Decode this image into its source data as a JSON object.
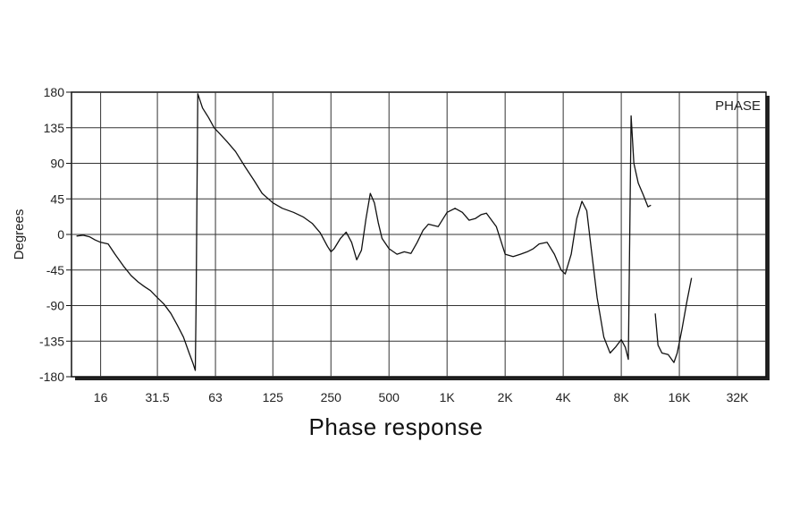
{
  "chart_data": {
    "type": "line",
    "title": "Phase response",
    "xlabel": "",
    "ylabel": "Degrees",
    "legend": "PHASE",
    "legend_position": "top-right",
    "grid": true,
    "x_scale": "log2",
    "xlim": [
      11.3,
      45000
    ],
    "ylim": [
      -180,
      180
    ],
    "x_ticks": [
      16,
      31.5,
      63,
      125,
      250,
      500,
      1000,
      2000,
      4000,
      8000,
      16000,
      32000
    ],
    "x_tick_labels": [
      "16",
      "31.5",
      "63",
      "125",
      "250",
      "500",
      "1K",
      "2K",
      "4K",
      "8K",
      "16K",
      "32K"
    ],
    "y_ticks": [
      180,
      135,
      90,
      45,
      0,
      -45,
      -90,
      -135,
      -180
    ],
    "y_tick_labels": [
      "180",
      "135",
      "90",
      "45",
      "0",
      "-45",
      "-90",
      "-135",
      "-180"
    ],
    "series": [
      {
        "segments": [
          [
            [
              12.0,
              -2
            ],
            [
              13.0,
              -1
            ],
            [
              14.0,
              -3
            ],
            [
              15.0,
              -7
            ],
            [
              16.0,
              -10
            ],
            [
              17.5,
              -12
            ],
            [
              19.0,
              -25
            ],
            [
              21.0,
              -40
            ],
            [
              23.0,
              -52
            ],
            [
              25.0,
              -60
            ],
            [
              27.0,
              -66
            ],
            [
              29.0,
              -71
            ],
            [
              31.5,
              -80
            ],
            [
              34.0,
              -88
            ],
            [
              37.0,
              -100
            ],
            [
              40.0,
              -115
            ],
            [
              43.0,
              -130
            ],
            [
              46.0,
              -150
            ],
            [
              48.0,
              -162
            ],
            [
              49.5,
              -172
            ],
            [
              50.0,
              -88
            ],
            [
              51.0,
              178
            ],
            [
              54.0,
              160
            ],
            [
              58.0,
              148
            ],
            [
              62.0,
              135
            ],
            [
              66.0,
              128
            ],
            [
              72.0,
              118
            ],
            [
              80.0,
              105
            ],
            [
              90.0,
              85
            ],
            [
              100.0,
              68
            ],
            [
              110.0,
              52
            ],
            [
              125.0,
              40
            ],
            [
              140.0,
              33
            ],
            [
              160.0,
              28
            ],
            [
              180.0,
              22
            ],
            [
              200.0,
              14
            ],
            [
              220.0,
              2
            ],
            [
              240.0,
              -15
            ],
            [
              250.0,
              -22
            ],
            [
              260.0,
              -18
            ],
            [
              280.0,
              -5
            ],
            [
              300.0,
              3
            ],
            [
              320.0,
              -10
            ],
            [
              340.0,
              -32
            ],
            [
              360.0,
              -20
            ],
            [
              380.0,
              20
            ],
            [
              400.0,
              52
            ],
            [
              420.0,
              40
            ],
            [
              440.0,
              15
            ],
            [
              460.0,
              -5
            ],
            [
              500.0,
              -18
            ],
            [
              550.0,
              -25
            ],
            [
              600.0,
              -22
            ],
            [
              650.0,
              -24
            ],
            [
              700.0,
              -10
            ],
            [
              750.0,
              5
            ],
            [
              800.0,
              13
            ],
            [
              900.0,
              10
            ],
            [
              1000.0,
              28
            ],
            [
              1100.0,
              33
            ],
            [
              1200.0,
              28
            ],
            [
              1300.0,
              18
            ],
            [
              1400.0,
              20
            ],
            [
              1500.0,
              25
            ],
            [
              1600.0,
              27
            ],
            [
              1800.0,
              10
            ],
            [
              2000.0,
              -25
            ],
            [
              2200.0,
              -28
            ],
            [
              2400.0,
              -25
            ],
            [
              2600.0,
              -22
            ],
            [
              2800.0,
              -18
            ],
            [
              3000.0,
              -12
            ],
            [
              3300.0,
              -10
            ],
            [
              3600.0,
              -25
            ],
            [
              3900.0,
              -45
            ],
            [
              4100.0,
              -50
            ],
            [
              4400.0,
              -25
            ],
            [
              4700.0,
              20
            ],
            [
              5000.0,
              42
            ],
            [
              5300.0,
              30
            ],
            [
              5600.0,
              -20
            ],
            [
              6000.0,
              -80
            ],
            [
              6500.0,
              -130
            ],
            [
              7000.0,
              -150
            ],
            [
              7500.0,
              -142
            ],
            [
              8000.0,
              -133
            ],
            [
              8400.0,
              -143
            ],
            [
              8700.0,
              -158
            ],
            [
              9000.0,
              150
            ],
            [
              9300.0,
              90
            ],
            [
              9800.0,
              65
            ],
            [
              10400.0,
              50
            ],
            [
              11000.0,
              35
            ],
            [
              11400.0,
              37
            ]
          ],
          [
            [
              12000.0,
              -100
            ],
            [
              12400.0,
              -140
            ],
            [
              13000.0,
              -150
            ],
            [
              14000.0,
              -152
            ],
            [
              15000.0,
              -162
            ],
            [
              15600.0,
              -150
            ],
            [
              16500.0,
              -120
            ],
            [
              17500.0,
              -85
            ],
            [
              18500.0,
              -55
            ]
          ]
        ]
      }
    ]
  }
}
